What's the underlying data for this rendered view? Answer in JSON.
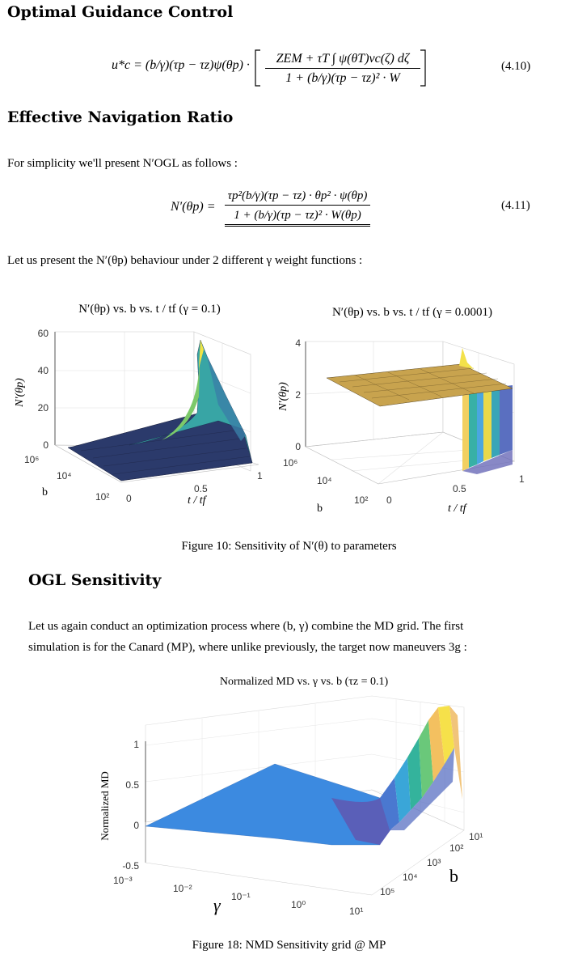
{
  "sections": {
    "s1_title": "Optimal Guidance Control",
    "s2_title": "Effective Navigation Ratio",
    "s3_title": "OGL Sensitivity"
  },
  "equations": {
    "eq1_lhs": "u*c = (b/γ)(τp − τz)ψ(θp) ·",
    "eq1_num": "ZEM + τT ∫ ψ(θT)vc(ζ) dζ",
    "eq1_den": "1 + (b/γ)(τp − τz)² · W",
    "eq1_tag": "(4.10)",
    "eq2_lhs": "N′(θp) =",
    "eq2_num": "τp²(b/γ)(τp − τz) · θp² · ψ(θp)",
    "eq2_den": "1 + (b/γ)(τp − τz)² · W(θp)",
    "eq2_tag": "(4.11)"
  },
  "text": {
    "p1": "For simplicity we'll present N′OGL as follows :",
    "p2": "Let us present the N′(θp) behaviour under 2 different γ weight functions :",
    "p3a": "Let us again conduct an optimization process where (b, γ) combine the MD grid. The first",
    "p3b": "simulation is for the Canard (MP), where unlike previously, the target now maneuvers 3g :"
  },
  "captions": {
    "fig10": "Figure 10: Sensitivity of N′(θ) to parameters",
    "fig18": "Figure 18: NMD Sensitivity grid @ MP"
  },
  "chart_data": [
    {
      "type": "surface",
      "title": "N′(θp) vs. b vs. t / tf  (γ = 0.1)",
      "xlabel": "t / tf",
      "ylabel": "b",
      "zlabel": "N′(θp)",
      "x_ticks": [
        "0",
        "0.5",
        "1"
      ],
      "y_ticks": [
        "10²",
        "10⁴",
        "10⁶"
      ],
      "z_ticks": [
        "0",
        "20",
        "40",
        "60"
      ],
      "zlim": [
        0,
        60
      ]
    },
    {
      "type": "surface",
      "title": "N′(θp) vs. b vs. t / tf   (γ = 0.0001)",
      "xlabel": "t / tf",
      "ylabel": "b",
      "zlabel": "N′(θp)",
      "x_ticks": [
        "0",
        "0.5",
        "1"
      ],
      "y_ticks": [
        "10²",
        "10⁴",
        "10⁶"
      ],
      "z_ticks": [
        "0",
        "2",
        "4"
      ],
      "zlim": [
        0,
        4
      ]
    },
    {
      "type": "surface",
      "title": "Normalized MD vs. γ vs. b     (τz = 0.1)",
      "xlabel": "γ",
      "ylabel": "b",
      "zlabel": "Normalized MD",
      "x_ticks": [
        "10⁻³",
        "10⁻²",
        "10⁻¹",
        "10⁰",
        "10¹"
      ],
      "y_ticks": [
        "10¹",
        "10²",
        "10³",
        "10⁴",
        "10⁵"
      ],
      "z_ticks": [
        "-0.5",
        "0",
        "0.5",
        "1"
      ],
      "zlim": [
        -0.5,
        1
      ]
    }
  ],
  "colors": {
    "dark_navy": "#2b3a6b",
    "blue": "#3e8ee0",
    "teal": "#35b7a6",
    "yellow": "#f2e640"
  }
}
